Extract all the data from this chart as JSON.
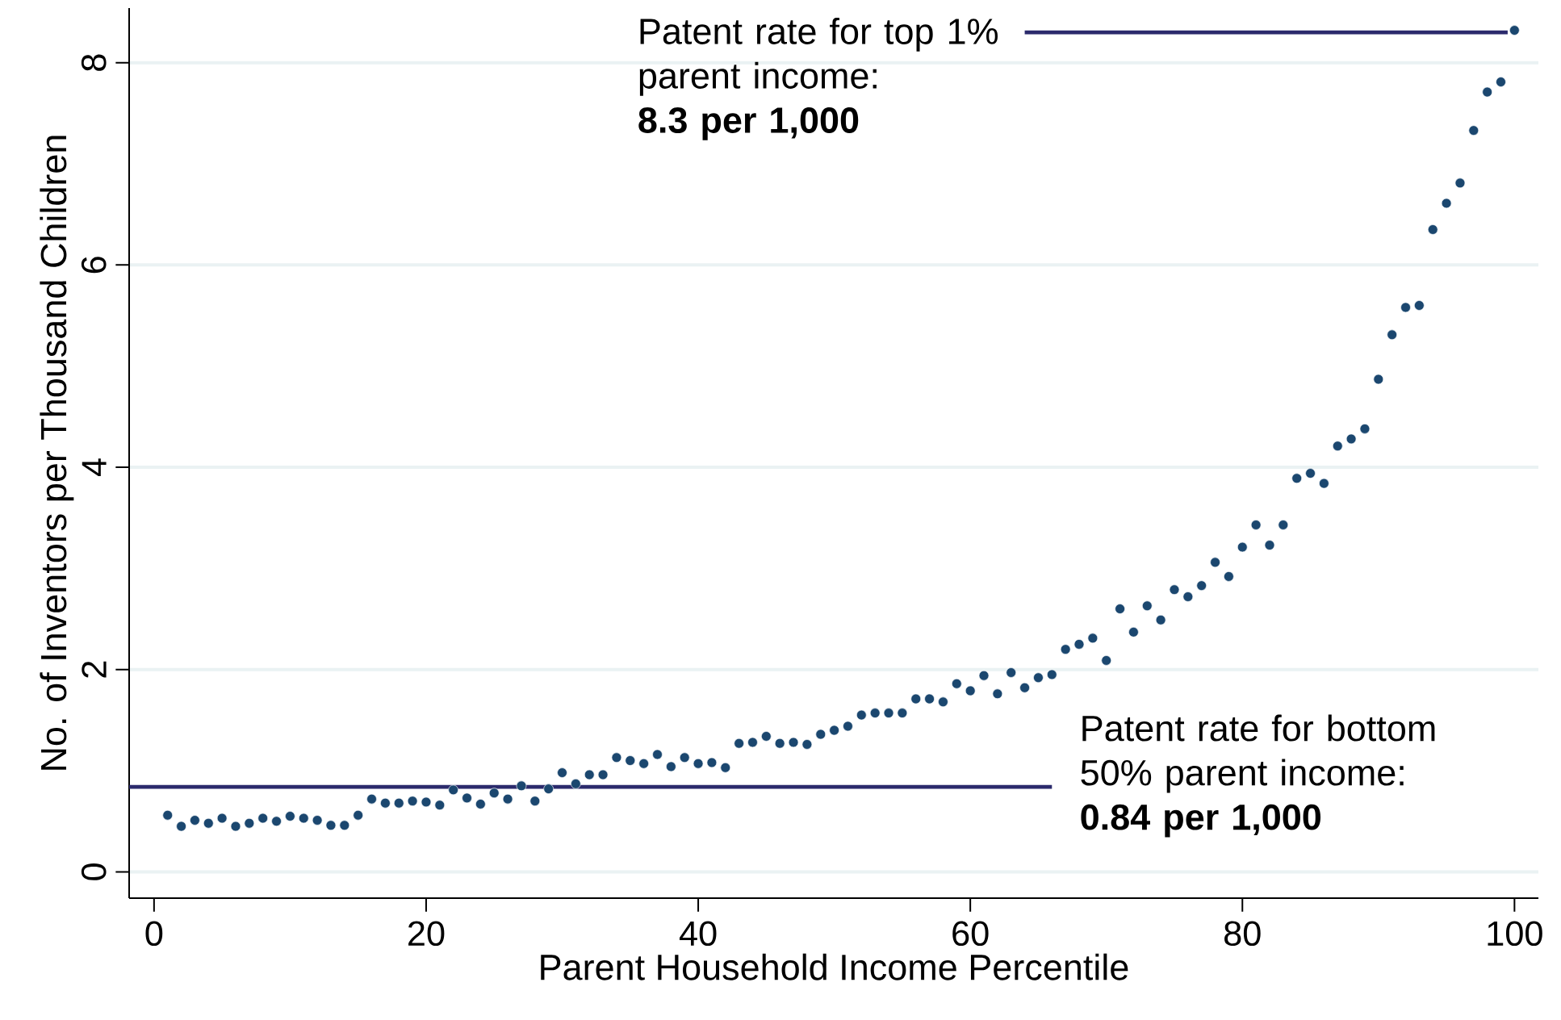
{
  "chart_data": {
    "type": "scatter",
    "xlabel": "Parent Household Income Percentile",
    "ylabel": "No. of Inventors per Thousand Children",
    "x": [
      1,
      2,
      3,
      4,
      5,
      6,
      7,
      8,
      9,
      10,
      11,
      12,
      13,
      14,
      15,
      16,
      17,
      18,
      19,
      20,
      21,
      22,
      23,
      24,
      25,
      26,
      27,
      28,
      29,
      30,
      31,
      32,
      33,
      34,
      35,
      36,
      37,
      38,
      39,
      40,
      41,
      42,
      43,
      44,
      45,
      46,
      47,
      48,
      49,
      50,
      51,
      52,
      53,
      54,
      55,
      56,
      57,
      58,
      59,
      60,
      61,
      62,
      63,
      64,
      65,
      66,
      67,
      68,
      69,
      70,
      71,
      72,
      73,
      74,
      75,
      76,
      77,
      78,
      79,
      80,
      81,
      82,
      83,
      84,
      85,
      86,
      87,
      88,
      89,
      90,
      91,
      92,
      93,
      94,
      95,
      96,
      97,
      98,
      99,
      100
    ],
    "values": [
      0.56,
      0.45,
      0.51,
      0.48,
      0.53,
      0.45,
      0.48,
      0.53,
      0.5,
      0.55,
      0.53,
      0.51,
      0.46,
      0.46,
      0.56,
      0.72,
      0.68,
      0.68,
      0.7,
      0.69,
      0.66,
      0.81,
      0.73,
      0.67,
      0.78,
      0.72,
      0.85,
      0.7,
      0.82,
      0.98,
      0.87,
      0.96,
      0.96,
      1.13,
      1.1,
      1.07,
      1.16,
      1.04,
      1.13,
      1.07,
      1.08,
      1.03,
      1.27,
      1.28,
      1.34,
      1.27,
      1.28,
      1.26,
      1.36,
      1.4,
      1.44,
      1.55,
      1.57,
      1.57,
      1.57,
      1.71,
      1.71,
      1.68,
      1.86,
      1.79,
      1.94,
      1.76,
      1.97,
      1.82,
      1.92,
      1.95,
      2.2,
      2.25,
      2.31,
      2.09,
      2.6,
      2.37,
      2.63,
      2.49,
      2.79,
      2.72,
      2.83,
      3.06,
      2.92,
      3.21,
      3.43,
      3.23,
      3.43,
      3.89,
      3.94,
      3.84,
      4.21,
      4.28,
      4.38,
      4.87,
      5.31,
      5.58,
      5.6,
      6.35,
      6.61,
      6.81,
      7.33,
      7.71,
      7.81,
      8.32
    ],
    "color": "#1b476f",
    "marker": "circle",
    "grid": "y",
    "xlim": [
      -1.83,
      101.76
    ],
    "ylim": [
      -0.26,
      8.54
    ],
    "xticks": [
      0,
      20,
      40,
      60,
      80,
      100
    ],
    "yticks": [
      0,
      2,
      4,
      6,
      8
    ],
    "ref_lines": [
      {
        "axis": "y",
        "value": 8.3,
        "label": "Patent rate for top 1% parent income:",
        "color": "#2b2a6c"
      },
      {
        "axis": "y",
        "value": 0.84,
        "label": "Patent rate for bottom 50% parent income:",
        "color": "#2b2a6c"
      }
    ],
    "annotations": [
      "8.3 per 1,000",
      "0.84 per 1,000"
    ]
  }
}
